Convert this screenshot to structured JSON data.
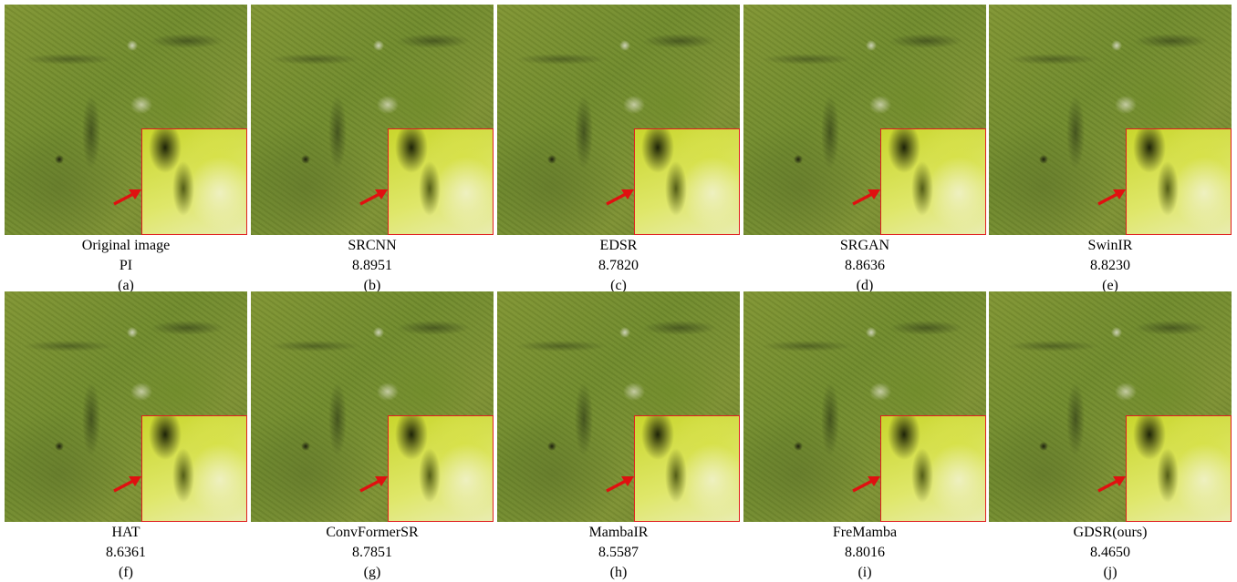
{
  "panels": [
    {
      "name": "Original image",
      "score": "PI",
      "label": "(a)"
    },
    {
      "name": "SRCNN",
      "score": "8.8951",
      "label": "(b)"
    },
    {
      "name": "EDSR",
      "score": "8.7820",
      "label": "(c)"
    },
    {
      "name": "SRGAN",
      "score": "8.8636",
      "label": "(d)"
    },
    {
      "name": "SwinIR",
      "score": "8.8230",
      "label": "(e)"
    },
    {
      "name": "HAT",
      "score": "8.6361",
      "label": "(f)"
    },
    {
      "name": "ConvFormerSR",
      "score": "8.7851",
      "label": "(g)"
    },
    {
      "name": "MambaIR",
      "score": "8.5587",
      "label": "(h)"
    },
    {
      "name": "FreMamba",
      "score": "8.8016",
      "label": "(i)"
    },
    {
      "name": "GDSR(ours)",
      "score": "8.4650",
      "label": "(j)"
    }
  ]
}
